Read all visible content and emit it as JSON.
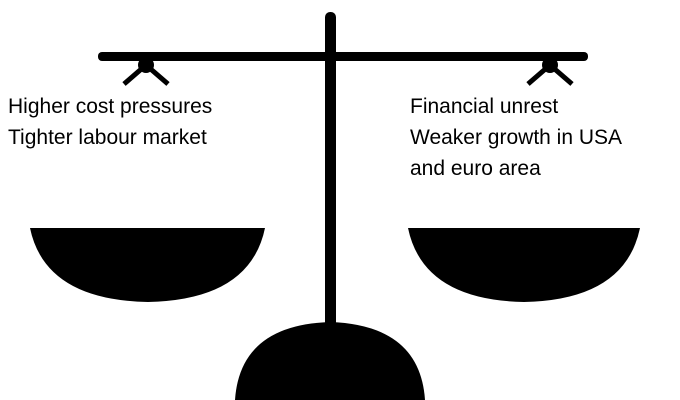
{
  "left": {
    "lines": [
      "Higher cost pressures",
      "Tighter labour market"
    ]
  },
  "right": {
    "lines": [
      "Financial unrest",
      "Weaker growth in USA",
      "and euro area"
    ]
  }
}
